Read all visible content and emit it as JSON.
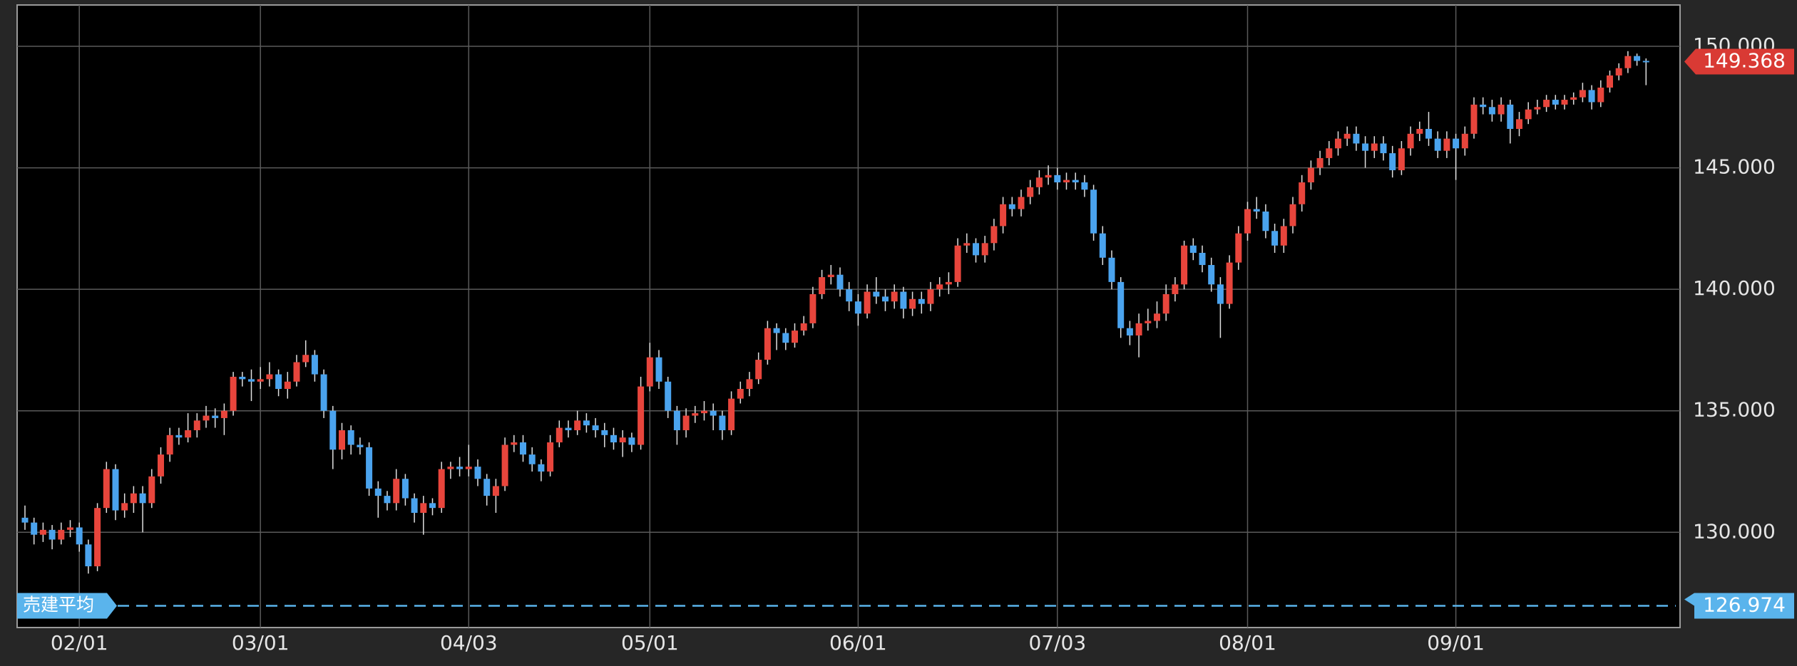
{
  "chart_data": {
    "type": "candlestick",
    "up_color": "#e8453c",
    "down_color": "#4aa3ee",
    "ylim": [
      126.08,
      151.7
    ],
    "yticks": [
      {
        "value": 130,
        "label": "130.000"
      },
      {
        "value": 135,
        "label": "135.000"
      },
      {
        "value": 140,
        "label": "140.000"
      },
      {
        "value": 145,
        "label": "145.000"
      },
      {
        "value": 150,
        "label": "150.000"
      }
    ],
    "grid": true,
    "current_price": 149.368,
    "short_average": {
      "label": "売建平均",
      "value": 126.974
    },
    "categories": [
      null,
      null,
      null,
      null,
      null,
      null,
      "02/01",
      null,
      null,
      null,
      null,
      null,
      null,
      null,
      null,
      null,
      null,
      null,
      null,
      null,
      null,
      null,
      null,
      null,
      null,
      null,
      "03/01",
      null,
      null,
      null,
      null,
      null,
      null,
      null,
      null,
      null,
      null,
      null,
      null,
      null,
      null,
      null,
      null,
      null,
      null,
      null,
      null,
      null,
      null,
      "04/03",
      null,
      null,
      null,
      null,
      null,
      null,
      null,
      null,
      null,
      null,
      null,
      null,
      null,
      null,
      null,
      null,
      null,
      null,
      null,
      "05/01",
      null,
      null,
      null,
      null,
      null,
      null,
      null,
      null,
      null,
      null,
      null,
      null,
      null,
      null,
      null,
      null,
      null,
      null,
      null,
      null,
      null,
      null,
      "06/01",
      null,
      null,
      null,
      null,
      null,
      null,
      null,
      null,
      null,
      null,
      null,
      null,
      null,
      null,
      null,
      null,
      null,
      null,
      null,
      null,
      null,
      "07/03",
      null,
      null,
      null,
      null,
      null,
      null,
      null,
      null,
      null,
      null,
      null,
      null,
      null,
      null,
      null,
      null,
      null,
      null,
      null,
      null,
      "08/01",
      null,
      null,
      null,
      null,
      null,
      null,
      null,
      null,
      null,
      null,
      null,
      null,
      null,
      null,
      null,
      null,
      null,
      null,
      null,
      null,
      null,
      null,
      "09/01",
      null,
      null,
      null,
      null,
      null,
      null,
      null,
      null,
      null,
      null,
      null,
      null,
      null,
      null,
      null,
      null,
      null,
      null,
      null,
      null,
      null
    ],
    "ohlc": [
      [
        130.6,
        131.1,
        130.1,
        130.4
      ],
      [
        130.4,
        130.6,
        129.5,
        129.9
      ],
      [
        129.9,
        130.4,
        129.6,
        130.1
      ],
      [
        130.1,
        130.3,
        129.3,
        129.7
      ],
      [
        129.7,
        130.4,
        129.5,
        130.1
      ],
      [
        130.1,
        130.5,
        129.8,
        130.2
      ],
      [
        130.2,
        130.4,
        129.2,
        129.5
      ],
      [
        129.5,
        129.7,
        128.3,
        128.6
      ],
      [
        128.6,
        131.2,
        128.4,
        131.0
      ],
      [
        131.0,
        132.9,
        130.8,
        132.6
      ],
      [
        132.6,
        132.8,
        130.5,
        130.9
      ],
      [
        130.9,
        131.6,
        130.6,
        131.2
      ],
      [
        131.2,
        131.9,
        130.8,
        131.6
      ],
      [
        131.6,
        131.9,
        130.0,
        131.2
      ],
      [
        131.2,
        132.6,
        131.0,
        132.3
      ],
      [
        132.3,
        133.5,
        132.0,
        133.2
      ],
      [
        133.2,
        134.3,
        132.9,
        134.0
      ],
      [
        134.0,
        134.3,
        133.6,
        133.9
      ],
      [
        133.9,
        134.9,
        133.7,
        134.2
      ],
      [
        134.2,
        134.9,
        133.9,
        134.6
      ],
      [
        134.6,
        135.2,
        134.3,
        134.8
      ],
      [
        134.8,
        135.1,
        134.3,
        134.7
      ],
      [
        134.7,
        135.3,
        134.0,
        135.0
      ],
      [
        135.0,
        136.6,
        134.8,
        136.4
      ],
      [
        136.4,
        136.6,
        136.0,
        136.3
      ],
      [
        136.3,
        136.7,
        135.4,
        136.2
      ],
      [
        136.2,
        136.8,
        135.9,
        136.3
      ],
      [
        136.3,
        137.0,
        136.0,
        136.5
      ],
      [
        136.5,
        136.7,
        135.6,
        135.9
      ],
      [
        135.9,
        136.6,
        135.5,
        136.2
      ],
      [
        136.2,
        137.3,
        136.0,
        137.0
      ],
      [
        137.0,
        137.9,
        136.8,
        137.3
      ],
      [
        137.3,
        137.5,
        136.2,
        136.5
      ],
      [
        136.5,
        136.7,
        134.7,
        135.0
      ],
      [
        135.0,
        135.2,
        132.6,
        133.4
      ],
      [
        133.4,
        134.5,
        133.0,
        134.2
      ],
      [
        134.2,
        134.4,
        133.2,
        133.6
      ],
      [
        133.6,
        133.9,
        133.2,
        133.5
      ],
      [
        133.5,
        133.7,
        131.5,
        131.8
      ],
      [
        131.8,
        132.1,
        130.6,
        131.5
      ],
      [
        131.5,
        131.7,
        130.9,
        131.2
      ],
      [
        131.2,
        132.6,
        130.9,
        132.2
      ],
      [
        132.2,
        132.4,
        131.1,
        131.4
      ],
      [
        131.4,
        131.6,
        130.4,
        130.8
      ],
      [
        130.8,
        131.5,
        129.9,
        131.2
      ],
      [
        131.2,
        131.4,
        130.7,
        131.0
      ],
      [
        131.0,
        132.9,
        130.8,
        132.6
      ],
      [
        132.6,
        132.9,
        132.2,
        132.7
      ],
      [
        132.7,
        133.1,
        132.3,
        132.6
      ],
      [
        132.6,
        133.6,
        132.3,
        132.7
      ],
      [
        132.7,
        133.0,
        131.9,
        132.2
      ],
      [
        132.2,
        132.4,
        131.1,
        131.5
      ],
      [
        131.5,
        132.2,
        130.8,
        131.9
      ],
      [
        131.9,
        133.9,
        131.7,
        133.6
      ],
      [
        133.6,
        134.0,
        133.3,
        133.7
      ],
      [
        133.7,
        134.0,
        132.9,
        133.2
      ],
      [
        133.2,
        133.5,
        132.5,
        132.8
      ],
      [
        132.8,
        133.0,
        132.1,
        132.5
      ],
      [
        132.5,
        134.0,
        132.3,
        133.7
      ],
      [
        133.7,
        134.6,
        133.5,
        134.3
      ],
      [
        134.3,
        134.6,
        133.9,
        134.2
      ],
      [
        134.2,
        135.0,
        134.0,
        134.6
      ],
      [
        134.6,
        134.9,
        134.1,
        134.4
      ],
      [
        134.4,
        134.7,
        133.9,
        134.2
      ],
      [
        134.2,
        134.5,
        133.5,
        134.0
      ],
      [
        134.0,
        134.3,
        133.4,
        133.7
      ],
      [
        133.7,
        134.2,
        133.1,
        133.9
      ],
      [
        133.9,
        134.1,
        133.3,
        133.6
      ],
      [
        133.6,
        136.4,
        133.4,
        136.0
      ],
      [
        136.0,
        137.8,
        135.8,
        137.2
      ],
      [
        137.2,
        137.5,
        135.9,
        136.2
      ],
      [
        136.2,
        136.4,
        134.7,
        135.0
      ],
      [
        135.0,
        135.2,
        133.6,
        134.2
      ],
      [
        134.2,
        135.1,
        133.9,
        134.8
      ],
      [
        134.8,
        135.2,
        134.5,
        134.9
      ],
      [
        134.9,
        135.4,
        134.6,
        135.0
      ],
      [
        135.0,
        135.3,
        134.2,
        134.8
      ],
      [
        134.8,
        135.0,
        133.8,
        134.2
      ],
      [
        134.2,
        135.8,
        134.0,
        135.5
      ],
      [
        135.5,
        136.2,
        135.3,
        135.9
      ],
      [
        135.9,
        136.6,
        135.6,
        136.3
      ],
      [
        136.3,
        137.4,
        136.1,
        137.1
      ],
      [
        137.1,
        138.7,
        136.9,
        138.4
      ],
      [
        138.4,
        138.6,
        137.5,
        138.2
      ],
      [
        138.2,
        138.4,
        137.5,
        137.8
      ],
      [
        137.8,
        138.6,
        137.6,
        138.3
      ],
      [
        138.3,
        138.9,
        138.1,
        138.6
      ],
      [
        138.6,
        140.1,
        138.4,
        139.8
      ],
      [
        139.8,
        140.8,
        139.6,
        140.5
      ],
      [
        140.5,
        141.0,
        140.2,
        140.6
      ],
      [
        140.6,
        140.9,
        139.7,
        140.0
      ],
      [
        140.0,
        140.3,
        139.1,
        139.5
      ],
      [
        139.5,
        139.8,
        138.5,
        139.0
      ],
      [
        139.0,
        140.2,
        138.8,
        139.9
      ],
      [
        139.9,
        140.5,
        139.4,
        139.7
      ],
      [
        139.7,
        140.0,
        139.1,
        139.5
      ],
      [
        139.5,
        140.2,
        139.2,
        139.9
      ],
      [
        139.9,
        140.1,
        138.8,
        139.2
      ],
      [
        139.2,
        139.9,
        138.9,
        139.6
      ],
      [
        139.6,
        139.9,
        139.0,
        139.4
      ],
      [
        139.4,
        140.3,
        139.1,
        140.0
      ],
      [
        140.0,
        140.5,
        139.7,
        140.2
      ],
      [
        140.2,
        140.7,
        139.8,
        140.3
      ],
      [
        140.3,
        142.1,
        140.1,
        141.8
      ],
      [
        141.8,
        142.3,
        141.5,
        141.9
      ],
      [
        141.9,
        142.1,
        141.1,
        141.4
      ],
      [
        141.4,
        142.2,
        141.1,
        141.9
      ],
      [
        141.9,
        142.9,
        141.6,
        142.6
      ],
      [
        142.6,
        143.8,
        142.3,
        143.5
      ],
      [
        143.5,
        143.8,
        143.0,
        143.3
      ],
      [
        143.3,
        144.1,
        143.0,
        143.8
      ],
      [
        143.8,
        144.5,
        143.5,
        144.2
      ],
      [
        144.2,
        144.9,
        143.9,
        144.6
      ],
      [
        144.6,
        145.1,
        144.3,
        144.7
      ],
      [
        144.7,
        145.0,
        144.1,
        144.4
      ],
      [
        144.4,
        144.8,
        144.1,
        144.5
      ],
      [
        144.5,
        144.8,
        144.1,
        144.4
      ],
      [
        144.4,
        144.7,
        143.8,
        144.1
      ],
      [
        144.1,
        144.3,
        142.0,
        142.3
      ],
      [
        142.3,
        142.6,
        141.0,
        141.3
      ],
      [
        141.3,
        141.6,
        140.0,
        140.3
      ],
      [
        140.3,
        140.5,
        138.0,
        138.4
      ],
      [
        138.4,
        138.7,
        137.7,
        138.1
      ],
      [
        138.1,
        139.0,
        137.2,
        138.6
      ],
      [
        138.6,
        139.2,
        138.3,
        138.7
      ],
      [
        138.7,
        139.5,
        138.4,
        139.0
      ],
      [
        139.0,
        140.2,
        138.7,
        139.8
      ],
      [
        139.8,
        140.5,
        139.5,
        140.2
      ],
      [
        140.2,
        142.0,
        140.0,
        141.8
      ],
      [
        141.8,
        142.1,
        141.2,
        141.5
      ],
      [
        141.5,
        141.8,
        140.7,
        141.0
      ],
      [
        141.0,
        141.3,
        139.9,
        140.2
      ],
      [
        140.2,
        140.5,
        138.0,
        139.4
      ],
      [
        139.4,
        141.4,
        139.2,
        141.1
      ],
      [
        141.1,
        142.6,
        140.8,
        142.3
      ],
      [
        142.3,
        143.6,
        142.0,
        143.3
      ],
      [
        143.3,
        143.8,
        142.9,
        143.2
      ],
      [
        143.2,
        143.5,
        142.1,
        142.4
      ],
      [
        142.4,
        142.7,
        141.5,
        141.8
      ],
      [
        141.8,
        142.9,
        141.5,
        142.6
      ],
      [
        142.6,
        143.8,
        142.3,
        143.5
      ],
      [
        143.5,
        144.7,
        143.2,
        144.4
      ],
      [
        144.4,
        145.3,
        144.1,
        145.0
      ],
      [
        145.0,
        145.7,
        144.7,
        145.4
      ],
      [
        145.4,
        146.1,
        145.1,
        145.8
      ],
      [
        145.8,
        146.5,
        145.5,
        146.2
      ],
      [
        146.2,
        146.7,
        145.9,
        146.4
      ],
      [
        146.4,
        146.7,
        145.7,
        146.0
      ],
      [
        146.0,
        146.3,
        145.0,
        145.7
      ],
      [
        145.7,
        146.3,
        145.4,
        146.0
      ],
      [
        146.0,
        146.3,
        145.3,
        145.6
      ],
      [
        145.6,
        145.9,
        144.6,
        144.9
      ],
      [
        144.9,
        146.1,
        144.7,
        145.8
      ],
      [
        145.8,
        146.7,
        145.5,
        146.4
      ],
      [
        146.4,
        146.9,
        146.1,
        146.6
      ],
      [
        146.6,
        147.3,
        145.9,
        146.2
      ],
      [
        146.2,
        146.5,
        145.4,
        145.7
      ],
      [
        145.7,
        146.5,
        145.4,
        146.2
      ],
      [
        146.2,
        146.4,
        144.5,
        145.8
      ],
      [
        145.8,
        146.7,
        145.5,
        146.4
      ],
      [
        146.4,
        147.9,
        146.2,
        147.6
      ],
      [
        147.6,
        147.9,
        147.2,
        147.5
      ],
      [
        147.5,
        147.8,
        146.9,
        147.2
      ],
      [
        147.2,
        147.9,
        146.9,
        147.6
      ],
      [
        147.6,
        147.8,
        146.0,
        146.6
      ],
      [
        146.6,
        147.3,
        146.3,
        147.0
      ],
      [
        147.0,
        147.7,
        146.8,
        147.4
      ],
      [
        147.4,
        147.8,
        147.2,
        147.5
      ],
      [
        147.5,
        148.0,
        147.3,
        147.8
      ],
      [
        147.8,
        148.0,
        147.4,
        147.6
      ],
      [
        147.6,
        148.0,
        147.4,
        147.8
      ],
      [
        147.8,
        148.1,
        147.6,
        147.9
      ],
      [
        147.9,
        148.5,
        147.7,
        148.2
      ],
      [
        148.2,
        148.4,
        147.4,
        147.7
      ],
      [
        147.7,
        148.6,
        147.5,
        148.3
      ],
      [
        148.3,
        149.0,
        148.1,
        148.8
      ],
      [
        148.8,
        149.3,
        148.6,
        149.1
      ],
      [
        149.1,
        149.8,
        148.9,
        149.6
      ],
      [
        149.6,
        149.7,
        149.2,
        149.4
      ],
      [
        149.4,
        149.5,
        148.4,
        149.368
      ]
    ]
  }
}
